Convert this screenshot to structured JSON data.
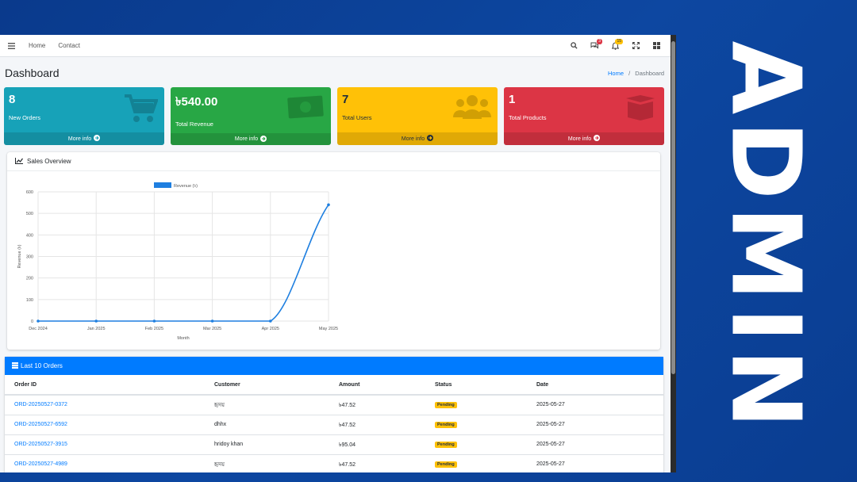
{
  "navbar": {
    "links": [
      "Home",
      "Contact"
    ],
    "messages_badge": "3",
    "notifications_badge": "15"
  },
  "header": {
    "title": "Dashboard",
    "breadcrumb": [
      "Home",
      "Dashboard"
    ]
  },
  "stats": [
    {
      "value": "8",
      "label": "New Orders",
      "footer": "More info",
      "icon": "cart-icon",
      "color": "#17a2b8"
    },
    {
      "value": "৳540.00",
      "label": "Total Revenue",
      "footer": "More info",
      "icon": "money-icon",
      "color": "#28a745"
    },
    {
      "value": "7",
      "label": "Total Users",
      "footer": "More info",
      "icon": "users-icon",
      "color": "#ffc107"
    },
    {
      "value": "1",
      "label": "Total Products",
      "footer": "More info",
      "icon": "box-icon",
      "color": "#dc3545"
    }
  ],
  "sales": {
    "title": "Sales Overview"
  },
  "chart_data": {
    "type": "line",
    "x": [
      "Dec 2024",
      "Jan 2025",
      "Feb 2025",
      "Mar 2025",
      "Apr 2025",
      "May 2025"
    ],
    "series": [
      {
        "name": "Revenue (৳)",
        "values": [
          0,
          0,
          0,
          0,
          0,
          540
        ],
        "color": "#1e7fe0"
      }
    ],
    "xlabel": "Month",
    "ylabel": "Revenue (৳)",
    "ylim": [
      0,
      600
    ],
    "yticks": [
      0,
      100,
      200,
      300,
      400,
      500,
      600
    ],
    "grid": true,
    "legend": "top"
  },
  "orders": {
    "title": "Last 10 Orders",
    "columns": [
      "Order ID",
      "Customer",
      "Amount",
      "Status",
      "Date"
    ],
    "rows": [
      {
        "id": "ORD-20250527-0372",
        "customer": "হৃদয়",
        "amount": "৳47.52",
        "status": "Pending",
        "date": "2025-05-27"
      },
      {
        "id": "ORD-20250527-6592",
        "customer": "dhhx",
        "amount": "৳47.52",
        "status": "Pending",
        "date": "2025-05-27"
      },
      {
        "id": "ORD-20250527-3915",
        "customer": "hridoy khan",
        "amount": "৳95.04",
        "status": "Pending",
        "date": "2025-05-27"
      },
      {
        "id": "ORD-20250527-4989",
        "customer": "হৃদয়",
        "amount": "৳47.52",
        "status": "Pending",
        "date": "2025-05-27"
      }
    ]
  },
  "side_text": "ADMIN"
}
